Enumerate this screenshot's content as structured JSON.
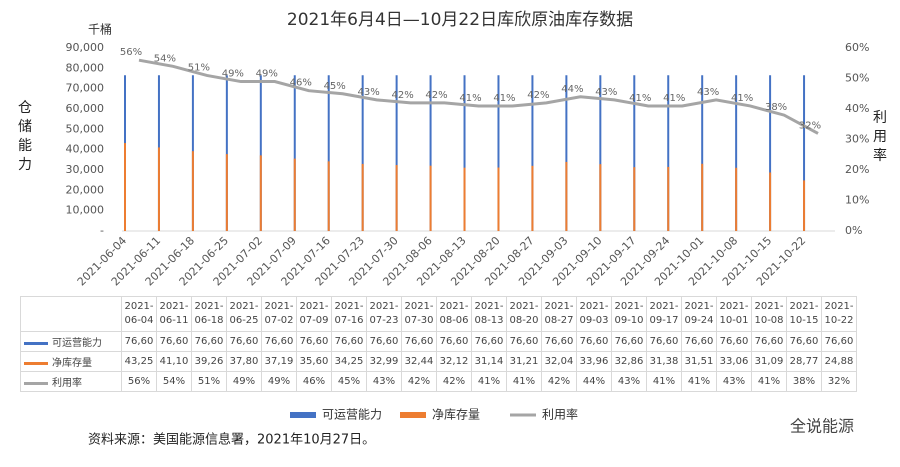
{
  "chart_data": {
    "type": "bar_line",
    "title": "2021年6月4日—10月22日库欣原油库存数据",
    "y_unit": "千桶",
    "ylabel": "仓储能力",
    "y2label": "利用率",
    "categories": [
      "2021-06-04",
      "2021-06-11",
      "2021-06-18",
      "2021-06-25",
      "2021-07-02",
      "2021-07-09",
      "2021-07-16",
      "2021-07-23",
      "2021-07-30",
      "2021-08-06",
      "2021-08-13",
      "2021-08-20",
      "2021-08-27",
      "2021-09-03",
      "2021-09-10",
      "2021-09-17",
      "2021-09-24",
      "2021-10-01",
      "2021-10-08",
      "2021-10-15",
      "2021-10-22"
    ],
    "series": [
      {
        "name": "可运营能力",
        "color": "#4472c4",
        "axis": "y",
        "values": [
          76600,
          76600,
          76600,
          76600,
          76600,
          76600,
          76600,
          76600,
          76600,
          76600,
          76600,
          76600,
          76600,
          76600,
          76600,
          76600,
          76600,
          76600,
          76600,
          76600,
          76600
        ],
        "value_labels": [
          "76,60",
          "76,60",
          "76,60",
          "76,60",
          "76,60",
          "76,60",
          "76,60",
          "76,60",
          "76,60",
          "76,60",
          "76,60",
          "76,60",
          "76,60",
          "76,60",
          "76,60",
          "76,60",
          "76,60",
          "76,60",
          "76,60",
          "76,60",
          "76,60"
        ]
      },
      {
        "name": "净库存量",
        "color": "#ed7d31",
        "axis": "y",
        "values": [
          43250,
          41100,
          39260,
          37800,
          37190,
          35600,
          34250,
          32990,
          32440,
          32120,
          31140,
          31210,
          32040,
          33960,
          32860,
          31380,
          31510,
          33060,
          31090,
          28770,
          24880
        ],
        "value_labels": [
          "43,25",
          "41,10",
          "39,26",
          "37,80",
          "37,19",
          "35,60",
          "34,25",
          "32,99",
          "32,44",
          "32,12",
          "31,14",
          "31,21",
          "32,04",
          "33,96",
          "32,86",
          "31,38",
          "31,51",
          "33,06",
          "31,09",
          "28,77",
          "24,88"
        ]
      },
      {
        "name": "利用率",
        "color": "#a5a5a5",
        "axis": "y2",
        "values": [
          56,
          54,
          51,
          49,
          49,
          46,
          45,
          43,
          42,
          42,
          41,
          41,
          42,
          44,
          43,
          41,
          41,
          43,
          41,
          38,
          32
        ],
        "value_labels": [
          "56%",
          "54%",
          "51%",
          "49%",
          "49%",
          "46%",
          "45%",
          "43%",
          "42%",
          "42%",
          "41%",
          "41%",
          "42%",
          "44%",
          "43%",
          "41%",
          "41%",
          "43%",
          "41%",
          "38%",
          "32%"
        ]
      }
    ],
    "ylim": [
      0,
      90000
    ],
    "yticks": [
      {
        "value": 0,
        "label": "-"
      },
      {
        "value": 10000,
        "label": "10,000"
      },
      {
        "value": 20000,
        "label": "20,000"
      },
      {
        "value": 30000,
        "label": "30,000"
      },
      {
        "value": 40000,
        "label": "40,000"
      },
      {
        "value": 50000,
        "label": "50,000"
      },
      {
        "value": 60000,
        "label": "60,000"
      },
      {
        "value": 70000,
        "label": "70,000"
      },
      {
        "value": 80000,
        "label": "80,000"
      },
      {
        "value": 90000,
        "label": "90,000"
      }
    ],
    "y2lim": [
      0,
      60
    ],
    "y2ticks": [
      {
        "value": 0,
        "label": "0%"
      },
      {
        "value": 10,
        "label": "10%"
      },
      {
        "value": 20,
        "label": "20%"
      },
      {
        "value": 30,
        "label": "30%"
      },
      {
        "value": 40,
        "label": "40%"
      },
      {
        "value": 50,
        "label": "50%"
      },
      {
        "value": 60,
        "label": "60%"
      }
    ],
    "source": "资料来源：美国能源信息署，2021年10月27日。",
    "watermark": "全说能源"
  }
}
